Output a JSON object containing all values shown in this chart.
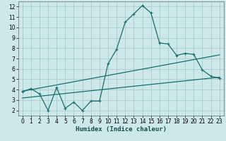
{
  "title": "",
  "xlabel": "Humidex (Indice chaleur)",
  "ylabel": "",
  "bg_color": "#cce8e8",
  "grid_color": "#aacccc",
  "line_color": "#1a6e6e",
  "xlim": [
    -0.5,
    23.5
  ],
  "ylim": [
    1.5,
    12.5
  ],
  "xticks": [
    0,
    1,
    2,
    3,
    4,
    5,
    6,
    7,
    8,
    9,
    10,
    11,
    12,
    13,
    14,
    15,
    16,
    17,
    18,
    19,
    20,
    21,
    22,
    23
  ],
  "yticks": [
    2,
    3,
    4,
    5,
    6,
    7,
    8,
    9,
    10,
    11,
    12
  ],
  "curve1_x": [
    0,
    1,
    2,
    3,
    4,
    5,
    6,
    7,
    8,
    9,
    10,
    11,
    12,
    13,
    14,
    15,
    16,
    17,
    18,
    19,
    20,
    21,
    22,
    23
  ],
  "curve1_y": [
    3.8,
    4.1,
    3.6,
    2.0,
    4.2,
    2.2,
    2.8,
    2.0,
    2.9,
    2.9,
    6.5,
    7.9,
    10.5,
    11.3,
    12.1,
    11.4,
    8.5,
    8.4,
    7.3,
    7.5,
    7.4,
    5.9,
    5.3,
    5.1
  ],
  "line2_x": [
    0,
    23
  ],
  "line2_y": [
    3.85,
    7.35
  ],
  "line3_x": [
    0,
    23
  ],
  "line3_y": [
    3.2,
    5.2
  ],
  "marker_size": 3.5,
  "linewidth": 0.9,
  "tick_fontsize": 5.5,
  "xlabel_fontsize": 6.5
}
